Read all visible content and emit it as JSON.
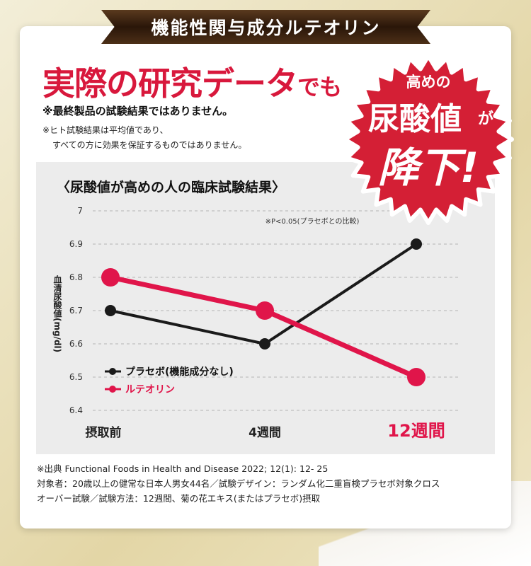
{
  "ribbon": "機能性関与成分ルテオリン",
  "headline": {
    "main": "実際の研究データ",
    "tail": "でも"
  },
  "notes": {
    "line1": "※最終製品の試験結果ではありません。",
    "line2": "※ヒト試験結果は平均値であり、",
    "line3": "すべての方に効果を保証するものではありません。"
  },
  "badge": {
    "line1": "高めの",
    "line2": "尿酸値",
    "ga": "が",
    "line3": "降下!"
  },
  "chart_title": "〈尿酸値が高めの人の臨床試験結果〉",
  "chart_data": {
    "type": "line",
    "categories": [
      "摂取前",
      "4週間",
      "12週間"
    ],
    "series": [
      {
        "name": "プラセボ(機能成分なし)",
        "values": [
          6.7,
          6.6,
          6.9
        ],
        "color": "#1a1a1a"
      },
      {
        "name": "ルテオリン",
        "values": [
          6.8,
          6.7,
          6.5
        ],
        "color": "#e0154a"
      }
    ],
    "ylabel": "血清尿酸値(mg/dl)",
    "ylim": [
      6.4,
      7.0
    ],
    "yticks": [
      "7",
      "6.9",
      "6.8",
      "6.7",
      "6.6",
      "6.5",
      "6.4"
    ],
    "annotation": "※P<0.05(プラセボとの比較)",
    "grid": true,
    "highlight_category": "12週間",
    "highlight_color": "#e0154a"
  },
  "source": {
    "line1": "※出典 Functional Foods in Health and Disease 2022; 12(1): 12- 25",
    "line2": "対象者：20歳以上の健常な日本人男女44名／試験デザイン：ランダム化二重盲検プラセボ対象クロス",
    "line3": "オーバー試験／試験方法：12週間、菊の花エキス(またはプラセボ)摂取"
  }
}
